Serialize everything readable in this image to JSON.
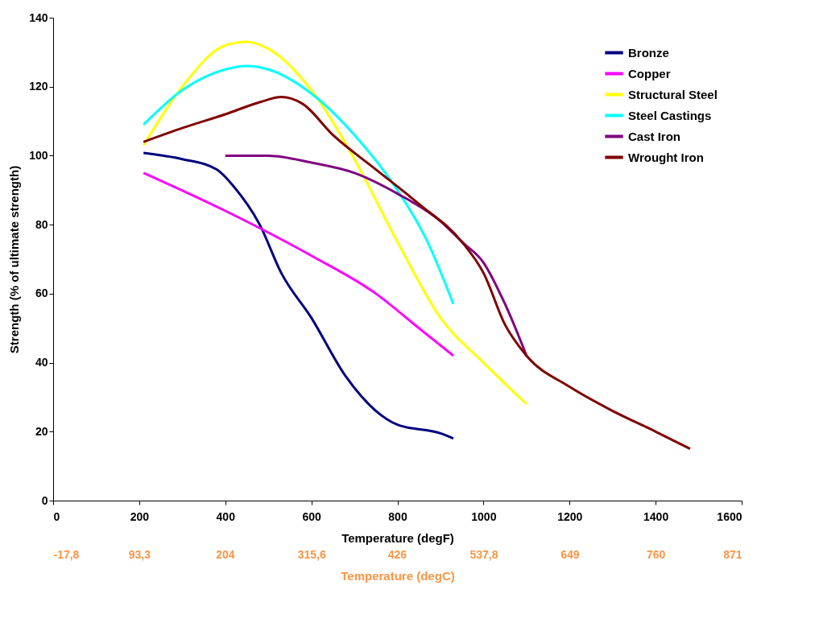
{
  "chart_data": {
    "type": "line",
    "xlabel": "Temperature (degF)",
    "ylabel": "Strength (% of ultimate strength)",
    "x2label": "Temperature (degC)",
    "xlim": [
      0,
      1600
    ],
    "xticks": [
      0,
      200,
      400,
      600,
      800,
      1000,
      1200,
      1400,
      1600
    ],
    "ylim": [
      0,
      140
    ],
    "yticks": [
      0,
      20,
      40,
      60,
      80,
      100,
      120,
      140
    ],
    "x2lim": [
      -17.8,
      871
    ],
    "x2ticks": [
      {
        "value": -17.8,
        "label": "-17,8"
      },
      {
        "value": 93.3,
        "label": "93,3"
      },
      {
        "value": 204,
        "label": "204"
      },
      {
        "value": 315.6,
        "label": "315,6"
      },
      {
        "value": 426,
        "label": "426"
      },
      {
        "value": 537.8,
        "label": "537,8"
      },
      {
        "value": 649,
        "label": "649"
      },
      {
        "value": 760,
        "label": "760"
      },
      {
        "value": 871,
        "label": "871"
      }
    ],
    "legend": "top right",
    "marker": "none",
    "line_style": "solid",
    "series": [
      {
        "name": "Bronze",
        "color": "#000080",
        "x": [
          210,
          300,
          380,
          420,
          480,
          530,
          600,
          680,
          750,
          800,
          900,
          930
        ],
        "values": [
          100.8,
          99,
          96,
          91,
          80,
          66,
          53,
          36,
          26,
          22,
          19.5,
          18
        ]
      },
      {
        "name": "Copper",
        "color": "#ff00ff",
        "x": [
          210,
          400,
          600,
          750,
          850,
          930
        ],
        "values": [
          95,
          84,
          71,
          60,
          50,
          42
        ]
      },
      {
        "name": "Structural Steel",
        "color": "#ffff00",
        "x": [
          210,
          300,
          400,
          450,
          500,
          600,
          700,
          800,
          900,
          1000,
          1100
        ],
        "values": [
          103,
          120,
          132,
          133,
          131,
          119,
          99,
          75,
          53,
          40,
          28
        ]
      },
      {
        "name": "Steel Castings",
        "color": "#00ffff",
        "x": [
          210,
          300,
          400,
          450,
          500,
          600,
          700,
          800,
          870,
          930
        ],
        "values": [
          109,
          119,
          125,
          126,
          125,
          118,
          106,
          90,
          75,
          57
        ]
      },
      {
        "name": "Cast Iron",
        "color": "#800080",
        "x": [
          400,
          500,
          600,
          700,
          800,
          900,
          950,
          1000,
          1050,
          1100
        ],
        "values": [
          100,
          100,
          98,
          95,
          89,
          81,
          75,
          69,
          57,
          42
        ]
      },
      {
        "name": "Wrought Iron",
        "color": "#800000",
        "x": [
          210,
          300,
          400,
          480,
          530,
          580,
          650,
          750,
          850,
          950,
          1000,
          1050,
          1100,
          1200,
          1300,
          1400,
          1480
        ],
        "values": [
          104,
          108,
          112,
          115.5,
          117,
          115,
          106,
          96,
          86,
          75,
          66,
          51,
          42,
          33,
          26,
          20,
          15
        ]
      }
    ]
  }
}
